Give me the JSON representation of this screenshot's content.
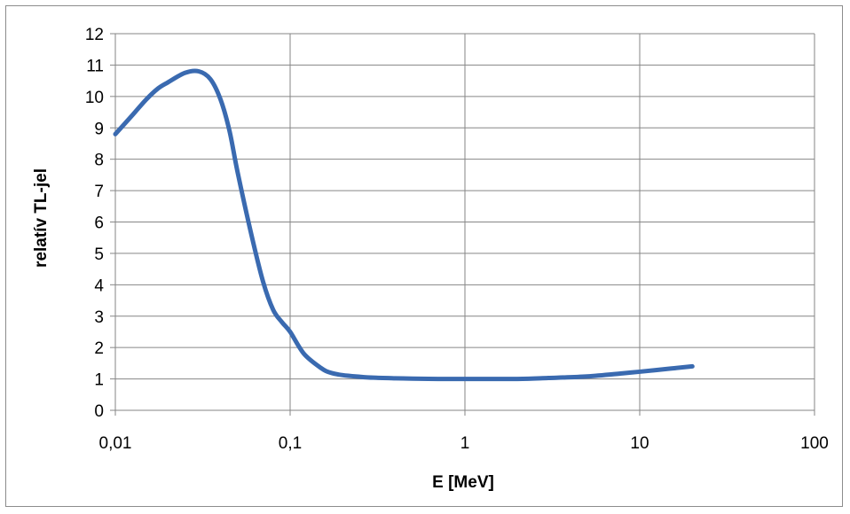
{
  "chart_data": {
    "type": "line",
    "title": "",
    "xlabel": "E [MeV]",
    "ylabel": "relatív TL-jel",
    "x_scale": "log",
    "xlim": [
      0.01,
      100
    ],
    "ylim": [
      0,
      12
    ],
    "grid": true,
    "legend": "none",
    "x_ticks": [
      0.01,
      0.1,
      1,
      10,
      100
    ],
    "x_tick_labels": [
      "0,01",
      "0,1",
      "1",
      "10",
      "100"
    ],
    "y_ticks": [
      0,
      1,
      2,
      3,
      4,
      5,
      6,
      7,
      8,
      9,
      10,
      11,
      12
    ],
    "y_tick_labels": [
      "0",
      "1",
      "2",
      "3",
      "4",
      "5",
      "6",
      "7",
      "8",
      "9",
      "10",
      "11",
      "12"
    ],
    "series": [
      {
        "color": "#3a6ab0",
        "x": [
          0.01,
          0.0125,
          0.015,
          0.0175,
          0.02,
          0.025,
          0.03,
          0.035,
          0.04,
          0.045,
          0.05,
          0.06,
          0.07,
          0.08,
          0.09,
          0.1,
          0.12,
          0.15,
          0.17,
          0.2,
          0.25,
          0.3,
          0.4,
          0.5,
          0.7,
          1,
          2,
          3,
          5,
          8,
          10,
          15,
          20
        ],
        "y": [
          8.8,
          9.4,
          9.9,
          10.25,
          10.45,
          10.75,
          10.8,
          10.55,
          9.9,
          8.9,
          7.6,
          5.6,
          4.1,
          3.2,
          2.8,
          2.5,
          1.8,
          1.35,
          1.2,
          1.12,
          1.07,
          1.04,
          1.02,
          1.01,
          1.0,
          1.0,
          1.0,
          1.03,
          1.08,
          1.18,
          1.23,
          1.33,
          1.4
        ]
      }
    ]
  }
}
